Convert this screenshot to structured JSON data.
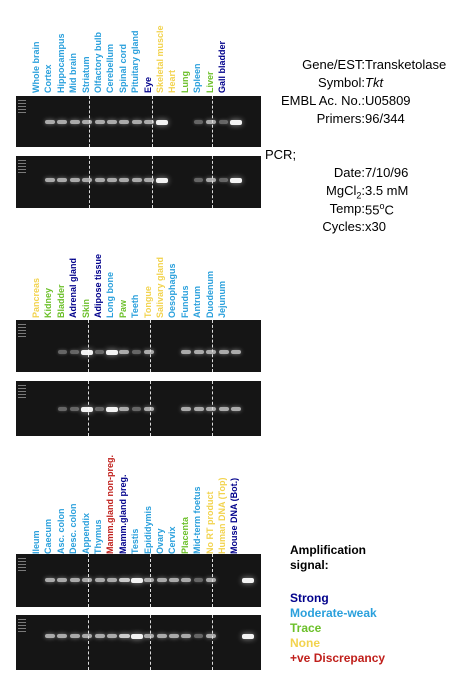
{
  "colors": {
    "strong": "#00008b",
    "moderate": "#2aa0dc",
    "trace": "#6cc02a",
    "none": "#f2d34e",
    "discrepancy": "#c0201c"
  },
  "gene_info": {
    "gene_label": "Gene/EST:",
    "gene_value": "Transketolase",
    "symbol_label": "Symbol:",
    "symbol_value": "Tkt",
    "embl_label": "EMBL Ac. No.:",
    "embl_value": "U05809",
    "primers_label": "Primers:",
    "primers_value": "96/344",
    "pcr_label": "PCR;",
    "date_label": "Date:",
    "date_value": "7/10/96",
    "mgcl2_label": "MgCl",
    "mgcl2_sub": "2",
    "mgcl2_colon": ":",
    "mgcl2_value": "3.5 mM",
    "temp_label": "Temp:",
    "temp_value": "55",
    "temp_sup": "o",
    "temp_unit": "C",
    "cycles_label": "Cycles:",
    "cycles_value": "x30"
  },
  "panels": [
    {
      "lanes": [
        {
          "label": "Whole brain",
          "level": "moderate"
        },
        {
          "label": "Cortex",
          "level": "moderate"
        },
        {
          "label": "Hippocampus",
          "level": "moderate"
        },
        {
          "label": "Mid brain",
          "level": "moderate"
        },
        {
          "label": "Striatum",
          "level": "moderate"
        },
        {
          "label": "Olfactory bulb",
          "level": "moderate"
        },
        {
          "label": "Cerebellum",
          "level": "moderate"
        },
        {
          "label": "Spinal cord",
          "level": "moderate"
        },
        {
          "label": "Pituitary gland",
          "level": "moderate"
        },
        {
          "label": "Eye",
          "level": "strong"
        },
        {
          "label": "Skeletal muscle",
          "level": "none"
        },
        {
          "label": "Heart",
          "level": "none"
        },
        {
          "label": "Lung",
          "level": "trace"
        },
        {
          "label": "Spleen",
          "level": "moderate"
        },
        {
          "label": "Liver",
          "level": "trace"
        },
        {
          "label": "Gall bladder",
          "level": "strong"
        }
      ]
    },
    {
      "lanes": [
        {
          "label": "Pancreas",
          "level": "none"
        },
        {
          "label": "Kidney",
          "level": "trace"
        },
        {
          "label": "Bladder",
          "level": "trace"
        },
        {
          "label": "Adrenal gland",
          "level": "strong"
        },
        {
          "label": "Skin",
          "level": "trace"
        },
        {
          "label": "Adipose tissue",
          "level": "strong"
        },
        {
          "label": "Long bone",
          "level": "moderate"
        },
        {
          "label": "Paw",
          "level": "trace"
        },
        {
          "label": "Teeth",
          "level": "moderate"
        },
        {
          "label": "Tongue",
          "level": "none"
        },
        {
          "label": "Salivary gland",
          "level": "none"
        },
        {
          "label": "Oesophagus",
          "level": "moderate"
        },
        {
          "label": "Fundus",
          "level": "moderate"
        },
        {
          "label": "Antrum",
          "level": "moderate"
        },
        {
          "label": "Duodenum",
          "level": "moderate"
        },
        {
          "label": "Jejunum",
          "level": "moderate"
        }
      ]
    },
    {
      "lanes": [
        {
          "label": "Ileum",
          "level": "moderate"
        },
        {
          "label": "Caecum",
          "level": "moderate"
        },
        {
          "label": "Asc. colon",
          "level": "moderate"
        },
        {
          "label": "Desc. colon",
          "level": "moderate"
        },
        {
          "label": "Appendix",
          "level": "moderate"
        },
        {
          "label": "Thymus",
          "level": "moderate"
        },
        {
          "label": "Mamm.gland non-preg.",
          "level": "discrepancy"
        },
        {
          "label": "Mamm.gland preg.",
          "level": "strong"
        },
        {
          "label": "Testis",
          "level": "moderate"
        },
        {
          "label": "Epididymis",
          "level": "moderate"
        },
        {
          "label": "Ovary",
          "level": "moderate"
        },
        {
          "label": "Cervix",
          "level": "moderate"
        },
        {
          "label": "Placenta",
          "level": "trace"
        },
        {
          "label": "Mid-term foetus",
          "level": "moderate"
        },
        {
          "label": "No RT product",
          "level": "none"
        },
        {
          "label": "Human DNA (Top)",
          "level": "none"
        },
        {
          "label": "Mouse DNA (Bot.)",
          "level": "strong"
        }
      ]
    }
  ],
  "legend": {
    "title_line1": "Amplification",
    "title_line2": "signal:",
    "strong": "Strong",
    "moderate": "Moderate-weak",
    "trace": "Trace",
    "none": "None",
    "discrepancy": "+ve Discrepancy"
  }
}
